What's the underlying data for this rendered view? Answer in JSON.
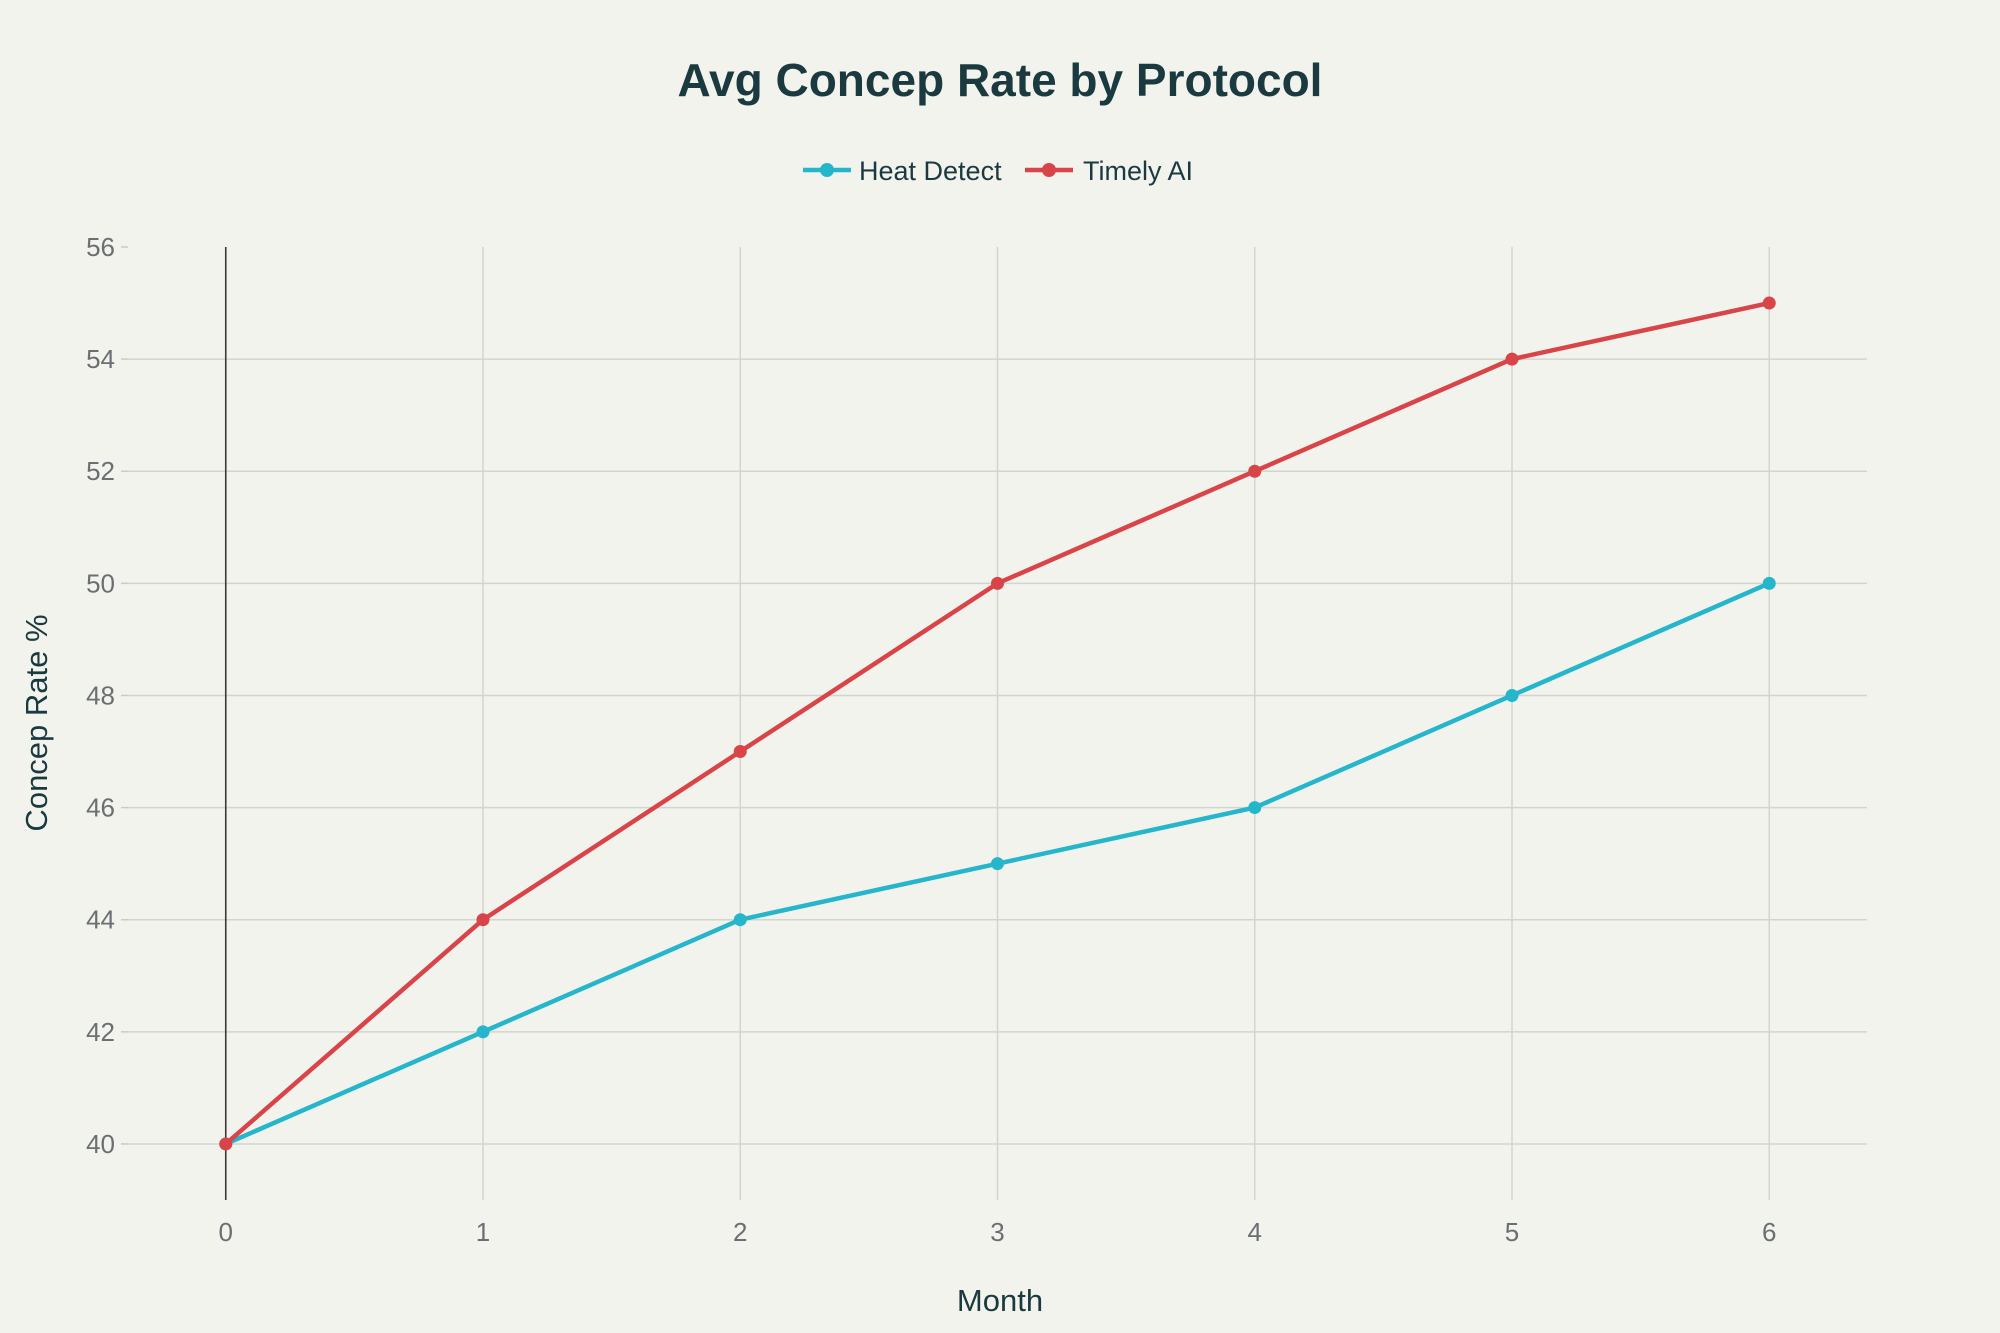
{
  "chart_data": {
    "type": "line",
    "title": "Avg Concep Rate by Protocol",
    "xlabel": "Month",
    "ylabel": "Concep Rate %",
    "x": [
      0,
      1,
      2,
      3,
      4,
      5,
      6
    ],
    "xlim": [
      -0.38,
      6.38
    ],
    "ylim": [
      39,
      56
    ],
    "xticks": [
      0,
      1,
      2,
      3,
      4,
      5,
      6
    ],
    "yticks": [
      40,
      42,
      44,
      46,
      48,
      50,
      52,
      54,
      56
    ],
    "grid": true,
    "legend_position": "top-center",
    "series": [
      {
        "name": "Heat Detect",
        "color": "#25b6cc",
        "values": [
          40,
          42,
          44,
          45,
          46,
          48,
          50
        ]
      },
      {
        "name": "Timely AI",
        "color": "#d94448",
        "values": [
          40,
          44,
          47,
          50,
          52,
          54,
          55
        ]
      }
    ]
  }
}
